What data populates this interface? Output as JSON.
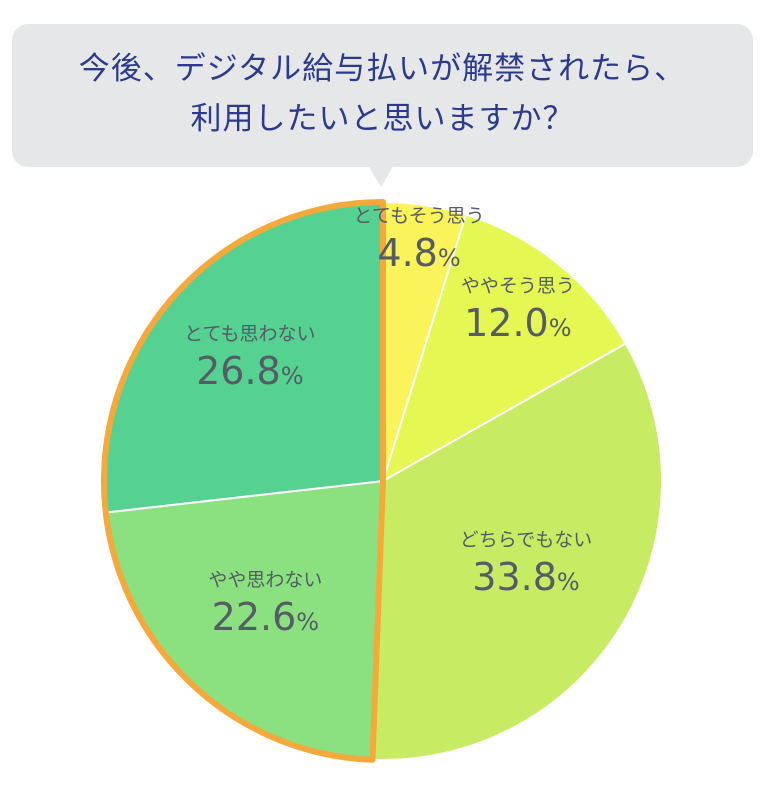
{
  "question": {
    "line1": "今後、デジタル給与払いが解禁されたら、",
    "line2": "利用したいと思いますか？"
  },
  "chart_data": {
    "type": "pie",
    "categories": [
      "とてもそう思う",
      "ややそう思う",
      "どちらでもない",
      "やや思わない",
      "とても思わない"
    ],
    "values": [
      4.8,
      12.0,
      33.8,
      22.6,
      26.8
    ],
    "value_labels": [
      "4.8",
      "12.0",
      "33.8",
      "22.6",
      "26.8"
    ],
    "unit": "%",
    "colors": [
      "#fbf35a",
      "#e4f752",
      "#c7ec64",
      "#8be17f",
      "#55d191"
    ],
    "highlight": {
      "group": [
        "やや思わない",
        "とても思わない"
      ],
      "outline_color": "#f5a93a"
    },
    "start": "12 o'clock",
    "direction": "clockwise"
  }
}
